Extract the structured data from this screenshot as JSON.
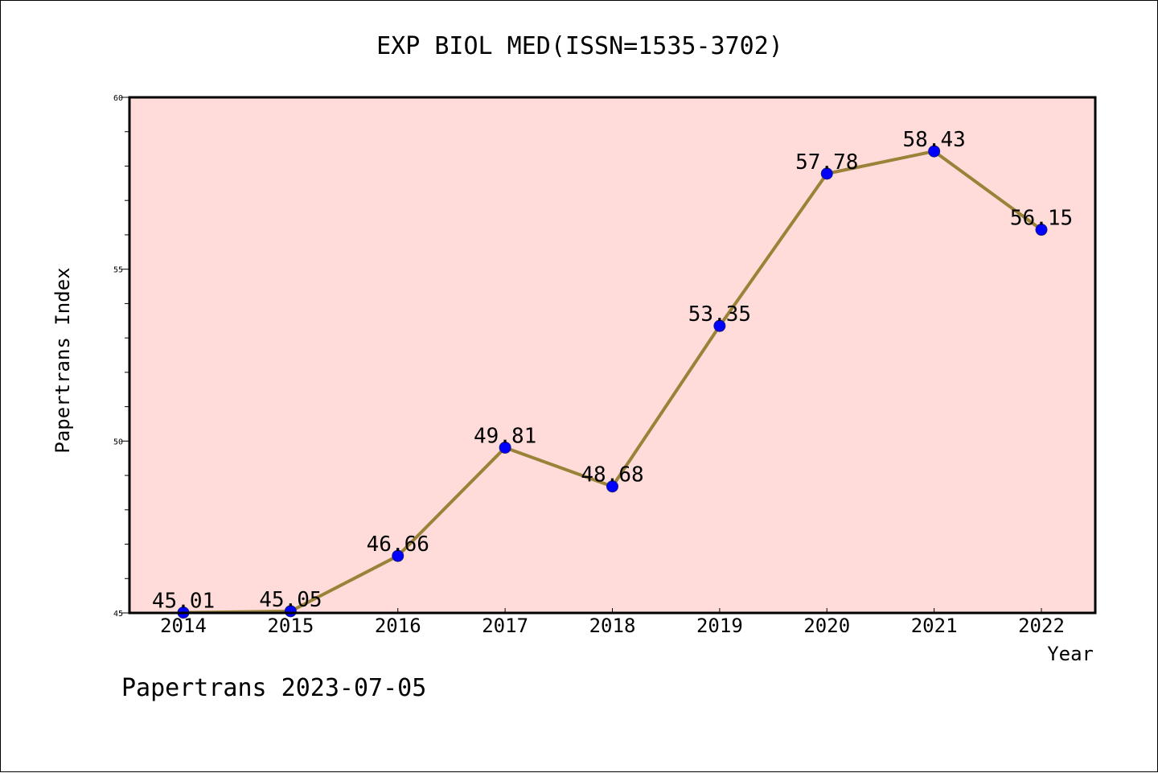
{
  "chart_data": {
    "type": "line",
    "title": "EXP BIOL MED(ISSN=1535-3702)",
    "xlabel": "Year",
    "ylabel": "Papertrans Index",
    "categories": [
      "2014",
      "2015",
      "2016",
      "2017",
      "2018",
      "2019",
      "2020",
      "2021",
      "2022"
    ],
    "series": [
      {
        "values": [
          45.01,
          45.05,
          46.66,
          49.81,
          48.68,
          53.35,
          57.78,
          58.43,
          56.15
        ],
        "labels": [
          "45.01",
          "45.05",
          "46.66",
          "49.81",
          "48.68",
          "53.35",
          "57.78",
          "58.43",
          "56.15"
        ]
      }
    ],
    "ylim": [
      45,
      60
    ],
    "yticks": [
      "45",
      "50",
      "55",
      "60"
    ],
    "ytick_values": [
      45,
      50,
      55,
      60
    ],
    "grid": false,
    "legend": "none",
    "colors": {
      "plot_background": "#ffdcd9",
      "line": "#9a8238",
      "marker": "#0000ff",
      "marker_edge": "#1a1a80",
      "frame": "#000000"
    }
  },
  "footer": {
    "text": "Papertrans 2023-07-05"
  }
}
